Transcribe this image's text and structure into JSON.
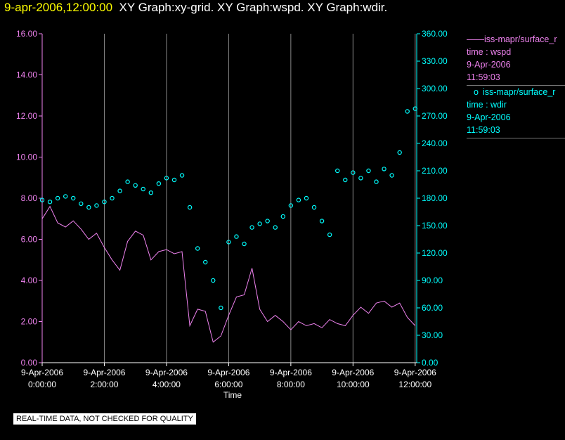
{
  "title": {
    "timestamp": "9-apr-2006,12:00:00",
    "graphs": "XY Graph:xy-grid.  XY Graph:wspd.  XY Graph:wdir."
  },
  "legend": [
    {
      "marker": "——",
      "name": "iss-mapr/surface_r",
      "line2": "time : wspd",
      "line3": "9-Apr-2006",
      "line4": "11:59:03",
      "color": "#ee82ee"
    },
    {
      "marker": "o",
      "name": "iss-mapr/surface_r",
      "line2": "time : wdir",
      "line3": "9-Apr-2006",
      "line4": "11:59:03",
      "color": "#00ffff"
    }
  ],
  "note": "REAL-TIME DATA, NOT CHECKED FOR QUALITY",
  "colors": {
    "wspd": "#ee82ee",
    "wdir": "#00ffff",
    "axis_left": "#ee82ee",
    "axis_right": "#00ffff",
    "grid": "#888888"
  },
  "chart_data": {
    "type": "line",
    "xlabel": "Time",
    "x_ticks": [
      {
        "hours": 0,
        "date": "9-Apr-2006",
        "time": "0:00:00"
      },
      {
        "hours": 2,
        "date": "9-Apr-2006",
        "time": "2:00:00"
      },
      {
        "hours": 4,
        "date": "9-Apr-2006",
        "time": "4:00:00"
      },
      {
        "hours": 6,
        "date": "9-Apr-2006",
        "time": "6:00:00"
      },
      {
        "hours": 8,
        "date": "9-Apr-2006",
        "time": "8:00:00"
      },
      {
        "hours": 10,
        "date": "9-Apr-2006",
        "time": "10:00:00"
      },
      {
        "hours": 12,
        "date": "9-Apr-2006",
        "time": "12:00:00"
      }
    ],
    "xlim": [
      0,
      12.05
    ],
    "y_left": {
      "lim": [
        0,
        16
      ],
      "ticks": [
        "0.00",
        "2.00",
        "4.00",
        "6.00",
        "8.00",
        "10.00",
        "12.00",
        "14.00",
        "16.00"
      ]
    },
    "y_right": {
      "lim": [
        0,
        360
      ],
      "ticks": [
        "0.00",
        "30.00",
        "60.00",
        "90.00",
        "120.00",
        "150.00",
        "180.00",
        "210.00",
        "240.00",
        "270.00",
        "300.00",
        "330.00",
        "360.00"
      ]
    },
    "grid": "vertical",
    "series": [
      {
        "name": "wspd",
        "axis": "left",
        "style": "line",
        "x": [
          0,
          0.25,
          0.5,
          0.75,
          1,
          1.25,
          1.5,
          1.75,
          2,
          2.25,
          2.5,
          2.75,
          3,
          3.25,
          3.5,
          3.75,
          4,
          4.25,
          4.5,
          4.75,
          5,
          5.25,
          5.5,
          5.75,
          6,
          6.25,
          6.5,
          6.75,
          7,
          7.25,
          7.5,
          7.75,
          8,
          8.25,
          8.5,
          8.75,
          9,
          9.25,
          9.5,
          9.75,
          10,
          10.25,
          10.5,
          10.75,
          11,
          11.25,
          11.5,
          11.75,
          12
        ],
        "y": [
          7.0,
          7.6,
          6.8,
          6.6,
          6.9,
          6.5,
          6.0,
          6.3,
          5.6,
          5.0,
          4.5,
          5.9,
          6.4,
          6.2,
          5.0,
          5.4,
          5.5,
          5.3,
          5.4,
          1.8,
          2.6,
          2.5,
          1.0,
          1.3,
          2.3,
          3.2,
          3.3,
          4.6,
          2.6,
          2.0,
          2.3,
          2.0,
          1.6,
          2.0,
          1.8,
          1.9,
          1.7,
          2.1,
          1.9,
          1.8,
          2.3,
          2.7,
          2.4,
          2.9,
          3.0,
          2.7,
          2.9,
          2.2,
          1.8
        ]
      },
      {
        "name": "wdir",
        "axis": "right",
        "style": "scatter",
        "x": [
          0,
          0.25,
          0.5,
          0.75,
          1,
          1.25,
          1.5,
          1.75,
          2,
          2.25,
          2.5,
          2.75,
          3,
          3.25,
          3.5,
          3.75,
          4,
          4.25,
          4.5,
          4.75,
          5,
          5.25,
          5.5,
          5.75,
          6,
          6.25,
          6.5,
          6.75,
          7,
          7.25,
          7.5,
          7.75,
          8,
          8.25,
          8.5,
          8.75,
          9,
          9.25,
          9.5,
          9.75,
          10,
          10.25,
          10.5,
          10.75,
          11,
          11.25,
          11.5,
          11.75,
          12
        ],
        "y": [
          178,
          176,
          180,
          182,
          180,
          174,
          170,
          172,
          176,
          180,
          188,
          198,
          194,
          190,
          186,
          196,
          202,
          200,
          205,
          170,
          125,
          110,
          90,
          60,
          132,
          138,
          130,
          148,
          152,
          155,
          148,
          160,
          172,
          178,
          180,
          170,
          155,
          140,
          210,
          200,
          208,
          202,
          210,
          198,
          212,
          205,
          230,
          275,
          278
        ]
      }
    ]
  }
}
